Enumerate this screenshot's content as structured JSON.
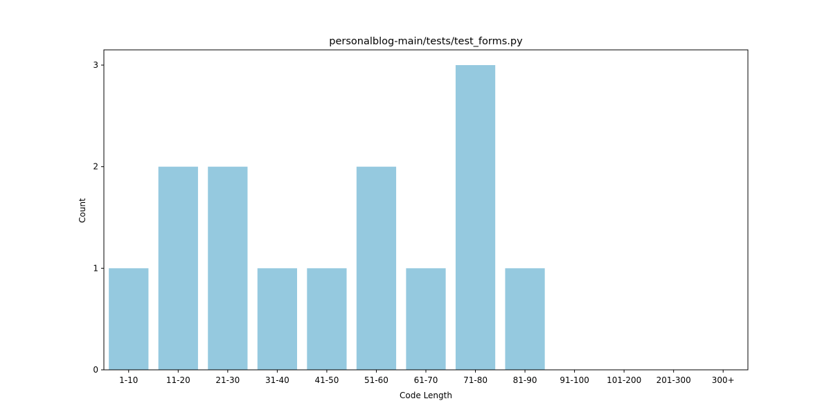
{
  "chart_data": {
    "type": "bar",
    "title": "personalblog-main/tests/test_forms.py",
    "xlabel": "Code Length",
    "ylabel": "Count",
    "categories": [
      "1-10",
      "11-20",
      "21-30",
      "31-40",
      "41-50",
      "51-60",
      "61-70",
      "71-80",
      "81-90",
      "91-100",
      "101-200",
      "201-300",
      "300+"
    ],
    "values": [
      1,
      2,
      2,
      1,
      1,
      2,
      1,
      3,
      1,
      0,
      0,
      0,
      0
    ],
    "yticks": [
      0,
      1,
      2,
      3
    ],
    "ylim": [
      0,
      3.15
    ],
    "grid": false,
    "legend": "none",
    "bar_color": "#95c9df"
  }
}
